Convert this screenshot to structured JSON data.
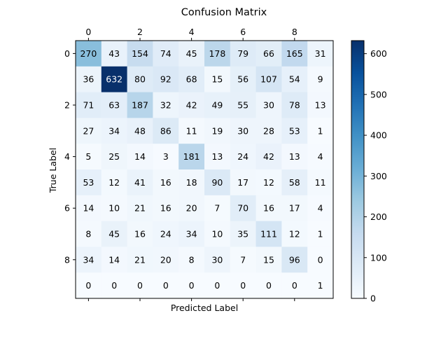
{
  "chart_data": {
    "type": "heatmap",
    "title": "Confusion Matrix",
    "xlabel": "Predicted Label",
    "ylabel": "True Label",
    "colormap": "Blues",
    "rows": [
      0,
      1,
      2,
      3,
      4,
      5,
      6,
      7,
      8,
      9
    ],
    "cols": [
      0,
      1,
      2,
      3,
      4,
      5,
      6,
      7,
      8,
      9
    ],
    "x_tick_labels": [
      "0",
      "2",
      "4",
      "6",
      "8"
    ],
    "x_tick_positions": [
      0,
      2,
      4,
      6,
      8
    ],
    "y_tick_labels": [
      "0",
      "2",
      "4",
      "6",
      "8"
    ],
    "y_tick_positions": [
      0,
      2,
      4,
      6,
      8
    ],
    "values": [
      [
        270,
        43,
        154,
        74,
        45,
        178,
        79,
        66,
        165,
        31
      ],
      [
        36,
        632,
        80,
        92,
        68,
        15,
        56,
        107,
        54,
        9
      ],
      [
        71,
        63,
        187,
        32,
        42,
        49,
        55,
        30,
        78,
        13
      ],
      [
        27,
        34,
        48,
        86,
        11,
        19,
        30,
        28,
        53,
        1
      ],
      [
        5,
        25,
        14,
        3,
        181,
        13,
        24,
        42,
        13,
        4
      ],
      [
        53,
        12,
        41,
        16,
        18,
        90,
        17,
        12,
        58,
        11
      ],
      [
        14,
        10,
        21,
        16,
        20,
        7,
        70,
        16,
        17,
        4
      ],
      [
        8,
        45,
        16,
        24,
        34,
        10,
        35,
        111,
        12,
        1
      ],
      [
        34,
        14,
        21,
        20,
        8,
        30,
        7,
        15,
        96,
        0
      ],
      [
        0,
        0,
        0,
        0,
        0,
        0,
        0,
        0,
        0,
        1
      ]
    ],
    "colorbar": {
      "range": [
        0,
        632
      ],
      "ticks": [
        0,
        100,
        200,
        300,
        400,
        500,
        600
      ],
      "tick_labels": [
        "0",
        "100",
        "200",
        "300",
        "400",
        "500",
        "600"
      ]
    }
  }
}
